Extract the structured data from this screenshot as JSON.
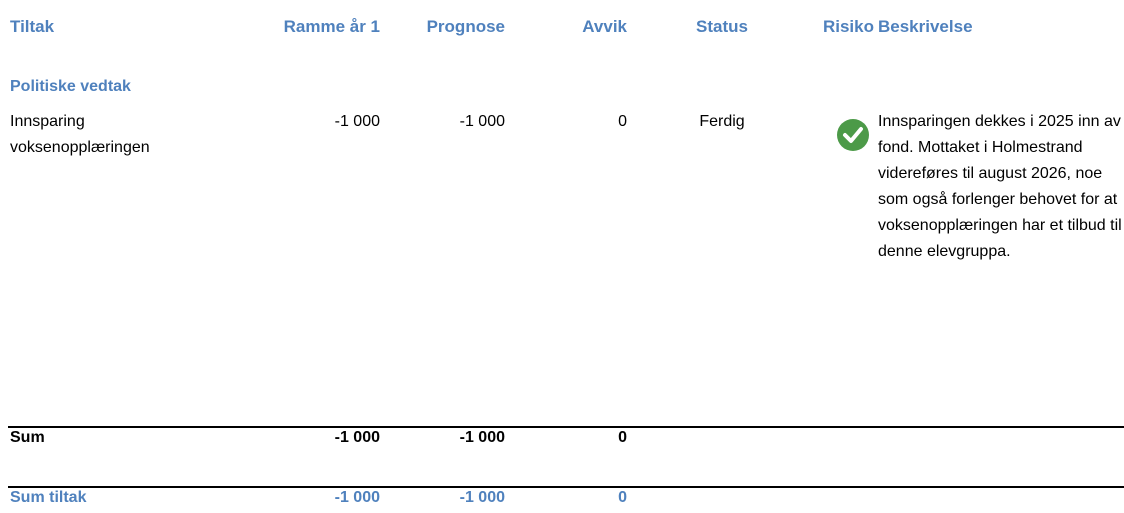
{
  "table": {
    "header": [
      "Tiltak",
      "Ramme år 1",
      "Prognose",
      "Avvik",
      "Status",
      "Risiko",
      "Beskrivelse"
    ],
    "section": "Politiske vedtak",
    "rows": [
      {
        "tiltak": "Innsparing voksenopplæringen",
        "ramme": "-1 000",
        "prognose": "-1 000",
        "avvik": "0",
        "status": "Ferdig",
        "beskrivelse": "Innsparingen dekkes i 2025 inn av fond. Mottaket i Holmestrand videreføres til august 2026, noe som også forlenger behovet for at voksenopplæringen har et tilbud til denne elevgruppa."
      }
    ],
    "sum": {
      "label": "Sum",
      "ramme": "-1 000",
      "prognose": "-1 000",
      "avvik": "0"
    },
    "total": {
      "label": "Sum tiltak",
      "ramme": "-1 000",
      "prognose": "-1 000",
      "avvik": "0"
    }
  }
}
